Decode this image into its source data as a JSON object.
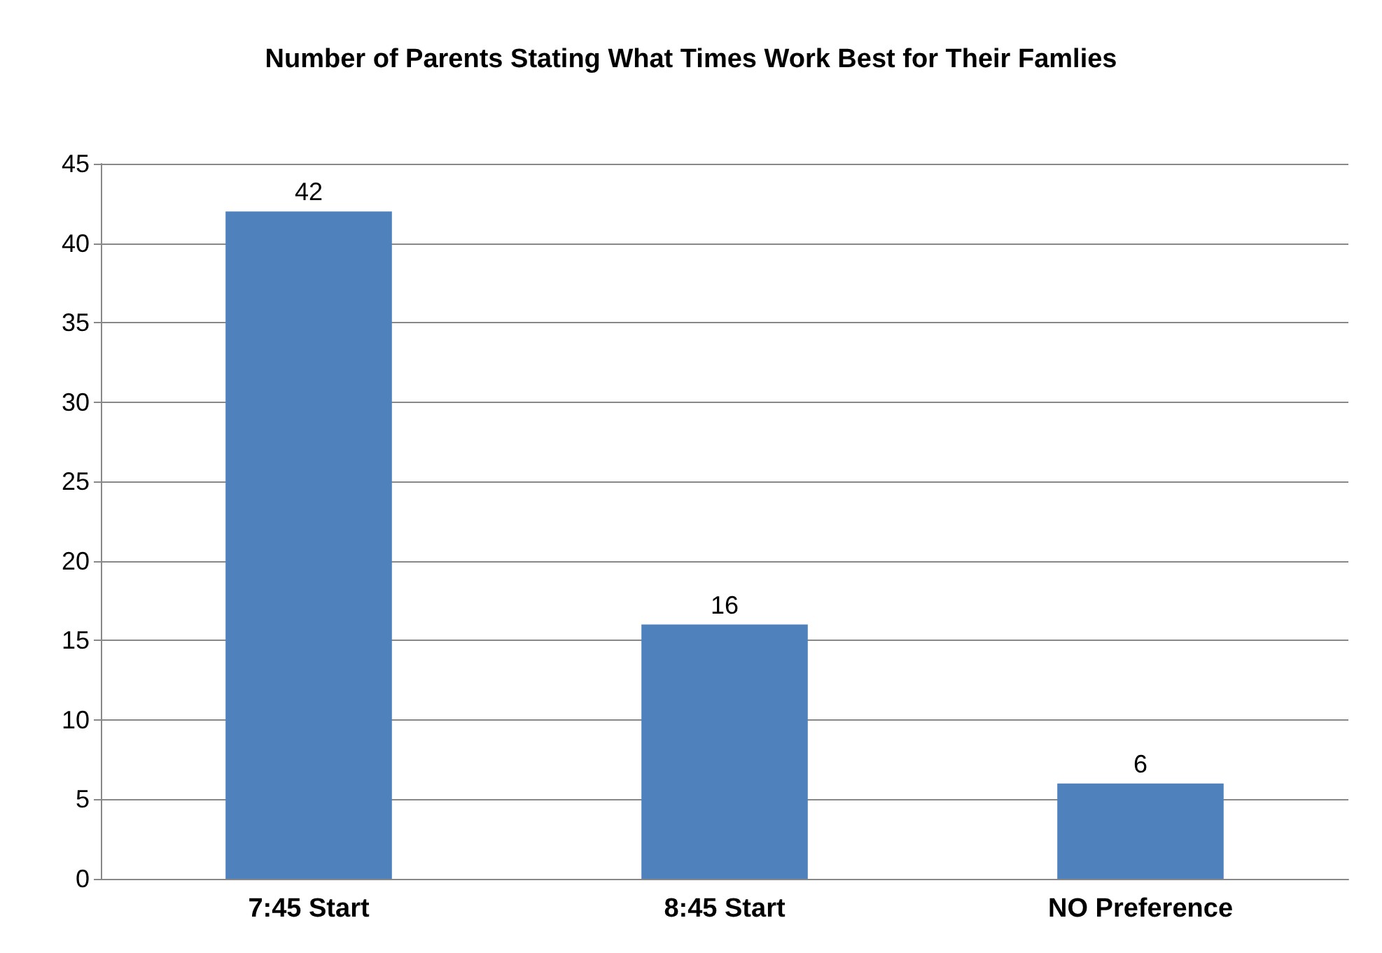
{
  "chart_data": {
    "type": "bar",
    "title": "Number of Parents Stating What Times Work Best for Their Famlies",
    "categories": [
      "7:45 Start",
      "8:45 Start",
      "NO Preference"
    ],
    "values": [
      42,
      16,
      6
    ],
    "color": "#4f81bd",
    "ylim": [
      0,
      45
    ],
    "yticks": [
      0,
      5,
      10,
      15,
      20,
      25,
      30,
      35,
      40,
      45
    ],
    "grid": "y",
    "data_labels": true
  }
}
